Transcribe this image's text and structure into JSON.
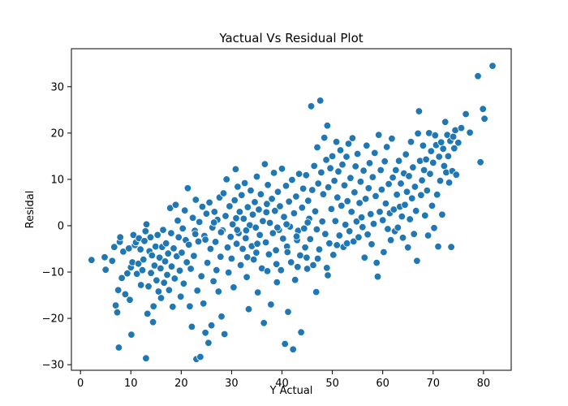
{
  "chart_data": {
    "type": "scatter",
    "title": "Yactual Vs Residual Plot",
    "xlabel": "Y Actual",
    "ylabel": "Residal",
    "xlim": [
      -1.8,
      85.5
    ],
    "ylim": [
      -31.2,
      38.2
    ],
    "xticks": [
      0,
      10,
      20,
      30,
      40,
      50,
      60,
      70,
      80
    ],
    "yticks": [
      -30,
      -20,
      -10,
      0,
      10,
      20,
      30
    ],
    "grid": false,
    "marker_color": "#1f77b4",
    "marker_edge_color": "#ffffff",
    "points": [
      [
        2.2,
        -7.4
      ],
      [
        4.8,
        -6.8
      ],
      [
        5.0,
        -9.5
      ],
      [
        6.3,
        -7.6
      ],
      [
        6.7,
        -4.6
      ],
      [
        7.0,
        -17.2
      ],
      [
        7.3,
        -18.7
      ],
      [
        7.5,
        -13.9
      ],
      [
        7.6,
        -26.3
      ],
      [
        7.8,
        -3.5
      ],
      [
        7.9,
        -2.5
      ],
      [
        8.2,
        -11.3
      ],
      [
        8.5,
        -5.6
      ],
      [
        8.9,
        -14.8
      ],
      [
        9.3,
        -10.3
      ],
      [
        9.6,
        -4.9
      ],
      [
        9.8,
        -16.0
      ],
      [
        10.0,
        -9.0
      ],
      [
        10.1,
        -23.5
      ],
      [
        10.3,
        -7.9
      ],
      [
        10.5,
        -2.0
      ],
      [
        10.8,
        -4.2
      ],
      [
        11.0,
        -3.6
      ],
      [
        11.2,
        -10.4
      ],
      [
        11.5,
        -8.2
      ],
      [
        11.6,
        -2.7
      ],
      [
        11.9,
        -5.1
      ],
      [
        12.0,
        -12.8
      ],
      [
        12.3,
        -9.6
      ],
      [
        12.5,
        -7.3
      ],
      [
        12.7,
        -3.3
      ],
      [
        12.9,
        -1.2
      ],
      [
        13.0,
        -28.6
      ],
      [
        13.1,
        0.3
      ],
      [
        13.3,
        -19.0
      ],
      [
        13.5,
        -13.1
      ],
      [
        13.7,
        -5.5
      ],
      [
        13.9,
        -2.5
      ],
      [
        14.0,
        -10.2
      ],
      [
        14.2,
        -6.4
      ],
      [
        14.4,
        -20.8
      ],
      [
        14.5,
        -17.4
      ],
      [
        14.7,
        -8.6
      ],
      [
        14.9,
        -4.5
      ],
      [
        15.1,
        -11.8
      ],
      [
        15.3,
        -2.0
      ],
      [
        15.5,
        -14.2
      ],
      [
        15.7,
        -6.9
      ],
      [
        15.9,
        -9.2
      ],
      [
        16.0,
        -15.6
      ],
      [
        16.2,
        -4.6
      ],
      [
        16.4,
        -0.9
      ],
      [
        16.6,
        -12.3
      ],
      [
        16.8,
        -7.7
      ],
      [
        17.0,
        -3.8
      ],
      [
        17.2,
        -10.6
      ],
      [
        17.4,
        -6.0
      ],
      [
        17.6,
        -13.9
      ],
      [
        17.8,
        3.8
      ],
      [
        18.0,
        -1.6
      ],
      [
        18.1,
        -8.8
      ],
      [
        18.3,
        -17.5
      ],
      [
        18.5,
        -4.9
      ],
      [
        18.7,
        -11.4
      ],
      [
        18.9,
        4.5
      ],
      [
        19.1,
        -6.6
      ],
      [
        19.3,
        1.1
      ],
      [
        19.5,
        -2.5
      ],
      [
        19.7,
        -9.7
      ],
      [
        19.9,
        -15.3
      ],
      [
        20.1,
        -5.8
      ],
      [
        20.3,
        -0.6
      ],
      [
        20.5,
        -12.5
      ],
      [
        20.7,
        3.3
      ],
      [
        20.9,
        -3.1
      ],
      [
        21.1,
        -7.9
      ],
      [
        21.3,
        8.1
      ],
      [
        21.5,
        -4.1
      ],
      [
        21.7,
        -17.4
      ],
      [
        21.9,
        -9.3
      ],
      [
        22.1,
        -21.8
      ],
      [
        22.3,
        1.7
      ],
      [
        22.5,
        -6.5
      ],
      [
        22.7,
        -1.1
      ],
      [
        22.9,
        5.6
      ],
      [
        23.0,
        -28.8
      ],
      [
        23.2,
        -14.0
      ],
      [
        23.4,
        -3.4
      ],
      [
        23.6,
        0.8
      ],
      [
        23.8,
        -28.3
      ],
      [
        24.0,
        -10.9
      ],
      [
        24.2,
        4.1
      ],
      [
        24.4,
        -16.8
      ],
      [
        24.6,
        -2.2
      ],
      [
        24.8,
        -23.1
      ],
      [
        25.0,
        2.6
      ],
      [
        25.2,
        -8.0
      ],
      [
        25.4,
        -25.3
      ],
      [
        25.6,
        5.0
      ],
      [
        25.8,
        -5.0
      ],
      [
        26.0,
        -21.5
      ],
      [
        26.2,
        -0.4
      ],
      [
        26.4,
        -12.0
      ],
      [
        26.6,
        3.0
      ],
      [
        26.8,
        -3.5
      ],
      [
        27.0,
        -9.6
      ],
      [
        27.2,
        1.3
      ],
      [
        27.4,
        -14.2
      ],
      [
        27.6,
        6.1
      ],
      [
        27.8,
        -6.7
      ],
      [
        28.0,
        -19.6
      ],
      [
        28.2,
        -1.0
      ],
      [
        28.4,
        7.0
      ],
      [
        28.6,
        -23.4
      ],
      [
        28.8,
        2.1
      ],
      [
        29.0,
        10.0
      ],
      [
        29.2,
        -4.7
      ],
      [
        29.4,
        -10.1
      ],
      [
        29.6,
        4.2
      ],
      [
        29.8,
        -2.4
      ],
      [
        30.0,
        -7.1
      ],
      [
        30.2,
        0.3
      ],
      [
        30.4,
        -13.3
      ],
      [
        30.6,
        5.5
      ],
      [
        30.8,
        12.2
      ],
      [
        31.0,
        -3.9
      ],
      [
        31.2,
        8.4
      ],
      [
        31.4,
        -1.6
      ],
      [
        31.6,
        3.0
      ],
      [
        31.8,
        -8.5
      ],
      [
        32.0,
        6.6
      ],
      [
        32.2,
        -5.0
      ],
      [
        32.4,
        1.5
      ],
      [
        32.6,
        9.2
      ],
      [
        32.8,
        -2.7
      ],
      [
        33.0,
        -11.1
      ],
      [
        33.2,
        4.0
      ],
      [
        33.4,
        -18.0
      ],
      [
        33.6,
        0.1
      ],
      [
        33.8,
        7.6
      ],
      [
        34.0,
        -4.4
      ],
      [
        34.2,
        2.4
      ],
      [
        34.4,
        -7.3
      ],
      [
        34.6,
        5.1
      ],
      [
        34.8,
        -0.4
      ],
      [
        35.0,
        10.6
      ],
      [
        35.2,
        -14.4
      ],
      [
        35.4,
        3.5
      ],
      [
        35.6,
        -2.0
      ],
      [
        35.8,
        6.8
      ],
      [
        36.0,
        -9.2
      ],
      [
        36.2,
        1.0
      ],
      [
        36.4,
        -21.0
      ],
      [
        36.6,
        13.3
      ],
      [
        36.8,
        -3.6
      ],
      [
        37.0,
        4.7
      ],
      [
        37.2,
        8.8
      ],
      [
        37.4,
        -6.2
      ],
      [
        37.6,
        0.6
      ],
      [
        37.8,
        -17.0
      ],
      [
        38.0,
        5.8
      ],
      [
        38.2,
        -1.6
      ],
      [
        38.4,
        11.4
      ],
      [
        38.6,
        3.2
      ],
      [
        38.8,
        -5.3
      ],
      [
        39.0,
        -12.2
      ],
      [
        39.2,
        7.3
      ],
      [
        39.4,
        -0.9
      ],
      [
        39.6,
        4.2
      ],
      [
        39.8,
        -9.6
      ],
      [
        40.0,
        12.3
      ],
      [
        40.2,
        -2.8
      ],
      [
        40.4,
        1.9
      ],
      [
        40.6,
        -25.5
      ],
      [
        40.8,
        8.6
      ],
      [
        41.0,
        -4.5
      ],
      [
        41.2,
        -18.6
      ],
      [
        41.4,
        5.2
      ],
      [
        41.6,
        -0.2
      ],
      [
        41.8,
        -7.9
      ],
      [
        42.0,
        9.9
      ],
      [
        42.2,
        -26.7
      ],
      [
        42.4,
        2.7
      ],
      [
        42.6,
        -11.7
      ],
      [
        42.8,
        6.3
      ],
      [
        43.0,
        -3.1
      ],
      [
        43.2,
        -1.1
      ],
      [
        43.4,
        11.2
      ],
      [
        43.6,
        -6.4
      ],
      [
        43.8,
        -23.0
      ],
      [
        44.0,
        3.9
      ],
      [
        44.2,
        8.0
      ],
      [
        44.4,
        -0.6
      ],
      [
        44.6,
        -4.7
      ],
      [
        44.8,
        10.9
      ],
      [
        45.0,
        -9.3
      ],
      [
        45.2,
        5.4
      ],
      [
        45.4,
        1.5
      ],
      [
        45.6,
        -2.9
      ],
      [
        45.8,
        25.8
      ],
      [
        46.0,
        7.7
      ],
      [
        46.2,
        -8.5
      ],
      [
        46.4,
        12.9
      ],
      [
        46.6,
        3.1
      ],
      [
        46.8,
        -14.3
      ],
      [
        47.0,
        16.9
      ],
      [
        47.2,
        9.1
      ],
      [
        47.4,
        -5.1
      ],
      [
        47.6,
        27.0
      ],
      [
        47.8,
        11.5
      ],
      [
        48.0,
        0.9
      ],
      [
        48.2,
        6.8
      ],
      [
        48.4,
        19.0
      ],
      [
        48.6,
        -1.8
      ],
      [
        48.8,
        14.2
      ],
      [
        49.0,
        21.6
      ],
      [
        49.2,
        8.3
      ],
      [
        49.4,
        -3.8
      ],
      [
        49.6,
        12.4
      ],
      [
        49.8,
        3.6
      ],
      [
        50.0,
        15.0
      ],
      [
        50.2,
        -6.3
      ],
      [
        50.4,
        9.7
      ],
      [
        50.6,
        1.0
      ],
      [
        50.8,
        18.1
      ],
      [
        51.0,
        6.1
      ],
      [
        51.2,
        11.7
      ],
      [
        51.4,
        -2.1
      ],
      [
        51.6,
        16.3
      ],
      [
        51.8,
        4.3
      ],
      [
        52.0,
        13.2
      ],
      [
        52.2,
        -4.6
      ],
      [
        52.4,
        8.7
      ],
      [
        52.6,
        0.2
      ],
      [
        52.8,
        14.9
      ],
      [
        53.0,
        5.3
      ],
      [
        53.2,
        17.7
      ],
      [
        53.4,
        -1.2
      ],
      [
        53.6,
        10.3
      ],
      [
        53.8,
        3.0
      ],
      [
        54.0,
        18.9
      ],
      [
        54.2,
        -3.4
      ],
      [
        54.4,
        7.2
      ],
      [
        54.6,
        12.8
      ],
      [
        54.8,
        0.9
      ],
      [
        55.0,
        15.5
      ],
      [
        55.2,
        -2.5
      ],
      [
        55.4,
        4.9
      ],
      [
        55.6,
        9.5
      ],
      [
        55.8,
        1.8
      ],
      [
        56.0,
        -0.3
      ],
      [
        56.2,
        11.9
      ],
      [
        56.4,
        -6.9
      ],
      [
        56.6,
        5.8
      ],
      [
        56.8,
        17.3
      ],
      [
        57.0,
        -1.9
      ],
      [
        57.2,
        8.1
      ],
      [
        57.4,
        13.5
      ],
      [
        57.6,
        2.5
      ],
      [
        57.8,
        -4.0
      ],
      [
        58.0,
        10.5
      ],
      [
        58.2,
        0.4
      ],
      [
        58.4,
        15.7
      ],
      [
        58.6,
        6.4
      ],
      [
        58.8,
        -8.0
      ],
      [
        59.0,
        -11.0
      ],
      [
        59.2,
        19.6
      ],
      [
        59.4,
        3.0
      ],
      [
        59.6,
        12.0
      ],
      [
        59.8,
        7.8
      ],
      [
        60.0,
        1.2
      ],
      [
        60.2,
        -5.7
      ],
      [
        60.4,
        13.9
      ],
      [
        60.6,
        4.8
      ],
      [
        60.8,
        17.0
      ],
      [
        61.0,
        -0.7
      ],
      [
        61.2,
        9.0
      ],
      [
        61.4,
        2.7
      ],
      [
        61.6,
        -3.1
      ],
      [
        61.8,
        18.8
      ],
      [
        62.0,
        10.4
      ],
      [
        62.2,
        3.5
      ],
      [
        62.4,
        -1.2
      ],
      [
        62.6,
        12.0
      ],
      [
        62.8,
        6.7
      ],
      [
        63.0,
        -0.4
      ],
      [
        63.2,
        14.0
      ],
      [
        63.4,
        4.1
      ],
      [
        63.6,
        9.1
      ],
      [
        63.8,
        2.0
      ],
      [
        64.0,
        -2.6
      ],
      [
        64.2,
        11.3
      ],
      [
        64.4,
        4.5
      ],
      [
        64.6,
        15.4
      ],
      [
        64.8,
        7.3
      ],
      [
        65.0,
        -4.7
      ],
      [
        65.2,
        10.7
      ],
      [
        65.4,
        1.4
      ],
      [
        65.6,
        18.1
      ],
      [
        65.8,
        5.9
      ],
      [
        66.0,
        12.6
      ],
      [
        66.2,
        -1.8
      ],
      [
        66.4,
        8.4
      ],
      [
        66.6,
        3.2
      ],
      [
        66.8,
        -7.6
      ],
      [
        67.0,
        19.9
      ],
      [
        67.2,
        24.7
      ],
      [
        67.4,
        14.0
      ],
      [
        67.6,
        6.6
      ],
      [
        67.8,
        9.8
      ],
      [
        68.0,
        17.3
      ],
      [
        68.2,
        12.0
      ],
      [
        68.4,
        2.2
      ],
      [
        68.6,
        14.3
      ],
      [
        68.8,
        7.6
      ],
      [
        69.0,
        -2.1
      ],
      [
        69.2,
        20.0
      ],
      [
        69.4,
        11.2
      ],
      [
        69.6,
        16.1
      ],
      [
        69.8,
        4.3
      ],
      [
        70.0,
        13.6
      ],
      [
        70.2,
        -0.5
      ],
      [
        70.4,
        19.5
      ],
      [
        70.6,
        17.4
      ],
      [
        70.8,
        6.7
      ],
      [
        71.0,
        -4.5
      ],
      [
        71.2,
        14.9
      ],
      [
        71.4,
        9.7
      ],
      [
        71.6,
        18.0
      ],
      [
        71.8,
        2.4
      ],
      [
        72.0,
        16.6
      ],
      [
        72.2,
        12.9
      ],
      [
        72.4,
        22.4
      ],
      [
        72.6,
        11.5
      ],
      [
        72.8,
        19.6
      ],
      [
        73.0,
        15.0
      ],
      [
        73.2,
        9.3
      ],
      [
        73.4,
        18.3
      ],
      [
        73.6,
        -4.6
      ],
      [
        73.8,
        11.8
      ],
      [
        74.0,
        19.2
      ],
      [
        74.2,
        16.7
      ],
      [
        74.4,
        20.6
      ],
      [
        74.6,
        11.0
      ],
      [
        75.0,
        17.9
      ],
      [
        75.6,
        21.1
      ],
      [
        76.5,
        24.1
      ],
      [
        77.3,
        20.1
      ],
      [
        78.9,
        32.3
      ],
      [
        79.4,
        13.7
      ],
      [
        79.9,
        25.2
      ],
      [
        80.2,
        23.1
      ],
      [
        81.8,
        34.5
      ],
      [
        26.5,
        0.7
      ],
      [
        31.1,
        -0.9
      ],
      [
        33.1,
        -6.8
      ],
      [
        35.1,
        -3.9
      ],
      [
        37.1,
        -9.8
      ],
      [
        39.1,
        -0.4
      ],
      [
        41.1,
        -5.7
      ],
      [
        43.1,
        -8.9
      ],
      [
        45.1,
        0.7
      ],
      [
        47.1,
        -7.1
      ],
      [
        49.1,
        -10.7
      ],
      [
        22.8,
        -1.8
      ],
      [
        24.8,
        -3.0
      ],
      [
        27.9,
        -1.4
      ],
      [
        30.9,
        1.6
      ],
      [
        32.9,
        -1.0
      ],
      [
        34.9,
        -5.8
      ],
      [
        36.9,
        2.9
      ],
      [
        38.9,
        -8.3
      ],
      [
        40.9,
        0.3
      ],
      [
        42.9,
        -2.3
      ],
      [
        44.9,
        -6.9
      ],
      [
        46.9,
        -0.8
      ],
      [
        48.9,
        -9.1
      ],
      [
        50.9,
        -4.2
      ],
      [
        52.9,
        -3.8
      ]
    ]
  }
}
